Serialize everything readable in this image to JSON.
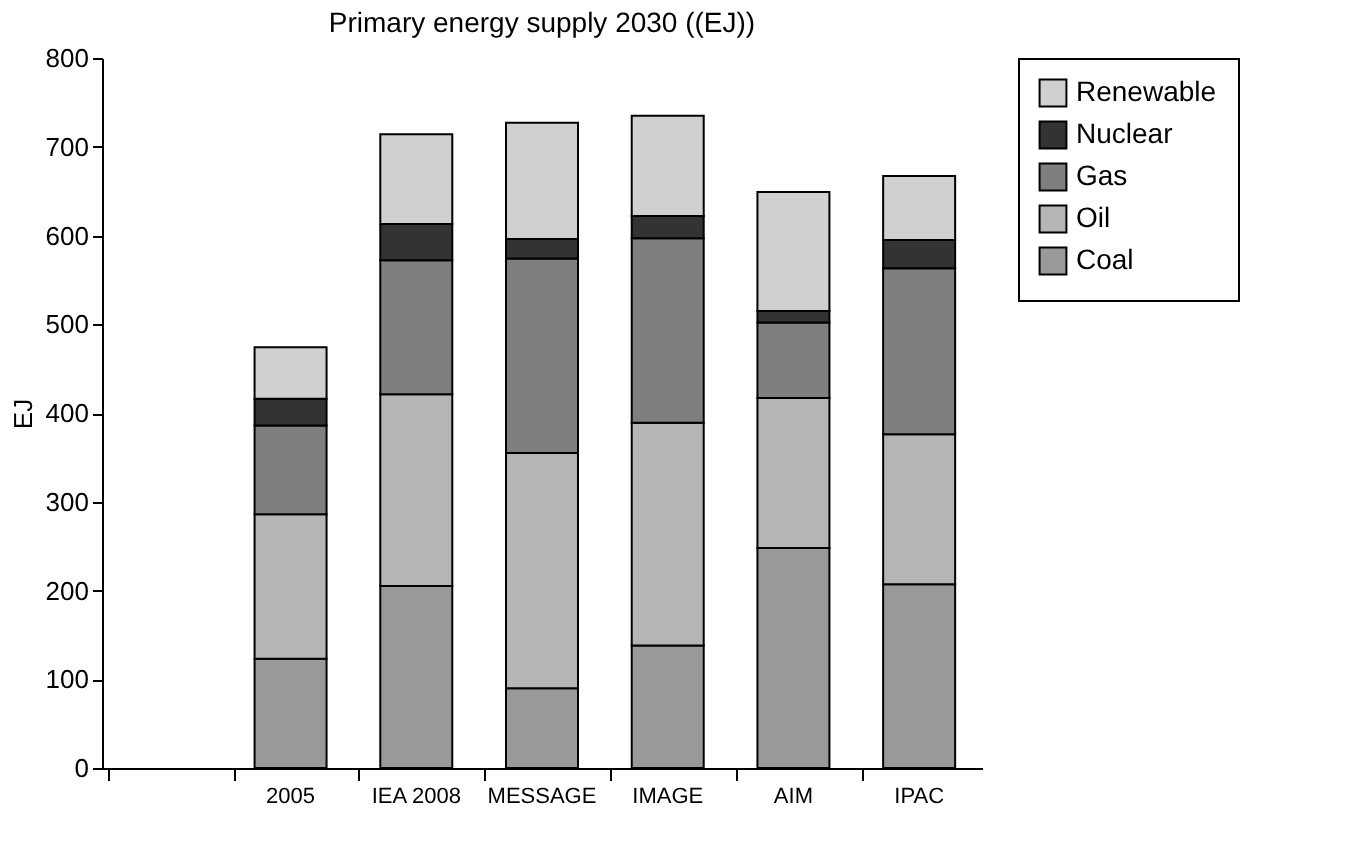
{
  "chart_data": {
    "type": "bar",
    "stacked": true,
    "title": "Primary energy supply 2030 ((EJ))",
    "ylabel": "EJ",
    "categories": [
      null,
      "2005",
      "IEA 2008",
      "MESSAGE",
      "IMAGE",
      "AIM",
      "IPAC"
    ],
    "series": [
      {
        "name": "Coal",
        "color": "#999999",
        "values": [
          null,
          123,
          205,
          90,
          138,
          248,
          207
        ]
      },
      {
        "name": "Oil",
        "color": "#b5b5b5",
        "values": [
          null,
          163,
          216,
          265,
          251,
          169,
          169
        ]
      },
      {
        "name": "Gas",
        "color": "#7f7f7f",
        "values": [
          null,
          100,
          151,
          219,
          208,
          85,
          187
        ]
      },
      {
        "name": "Nuclear",
        "color": "#333333",
        "values": [
          null,
          30,
          41,
          22,
          25,
          13,
          32
        ]
      },
      {
        "name": "Renewable",
        "color": "#d0d0d0",
        "values": [
          null,
          58,
          101,
          131,
          113,
          134,
          72
        ]
      }
    ],
    "ylim": [
      0,
      800
    ],
    "yticks": [
      0,
      100,
      200,
      300,
      400,
      500,
      600,
      700,
      800
    ],
    "grid": false,
    "legend": "right"
  }
}
